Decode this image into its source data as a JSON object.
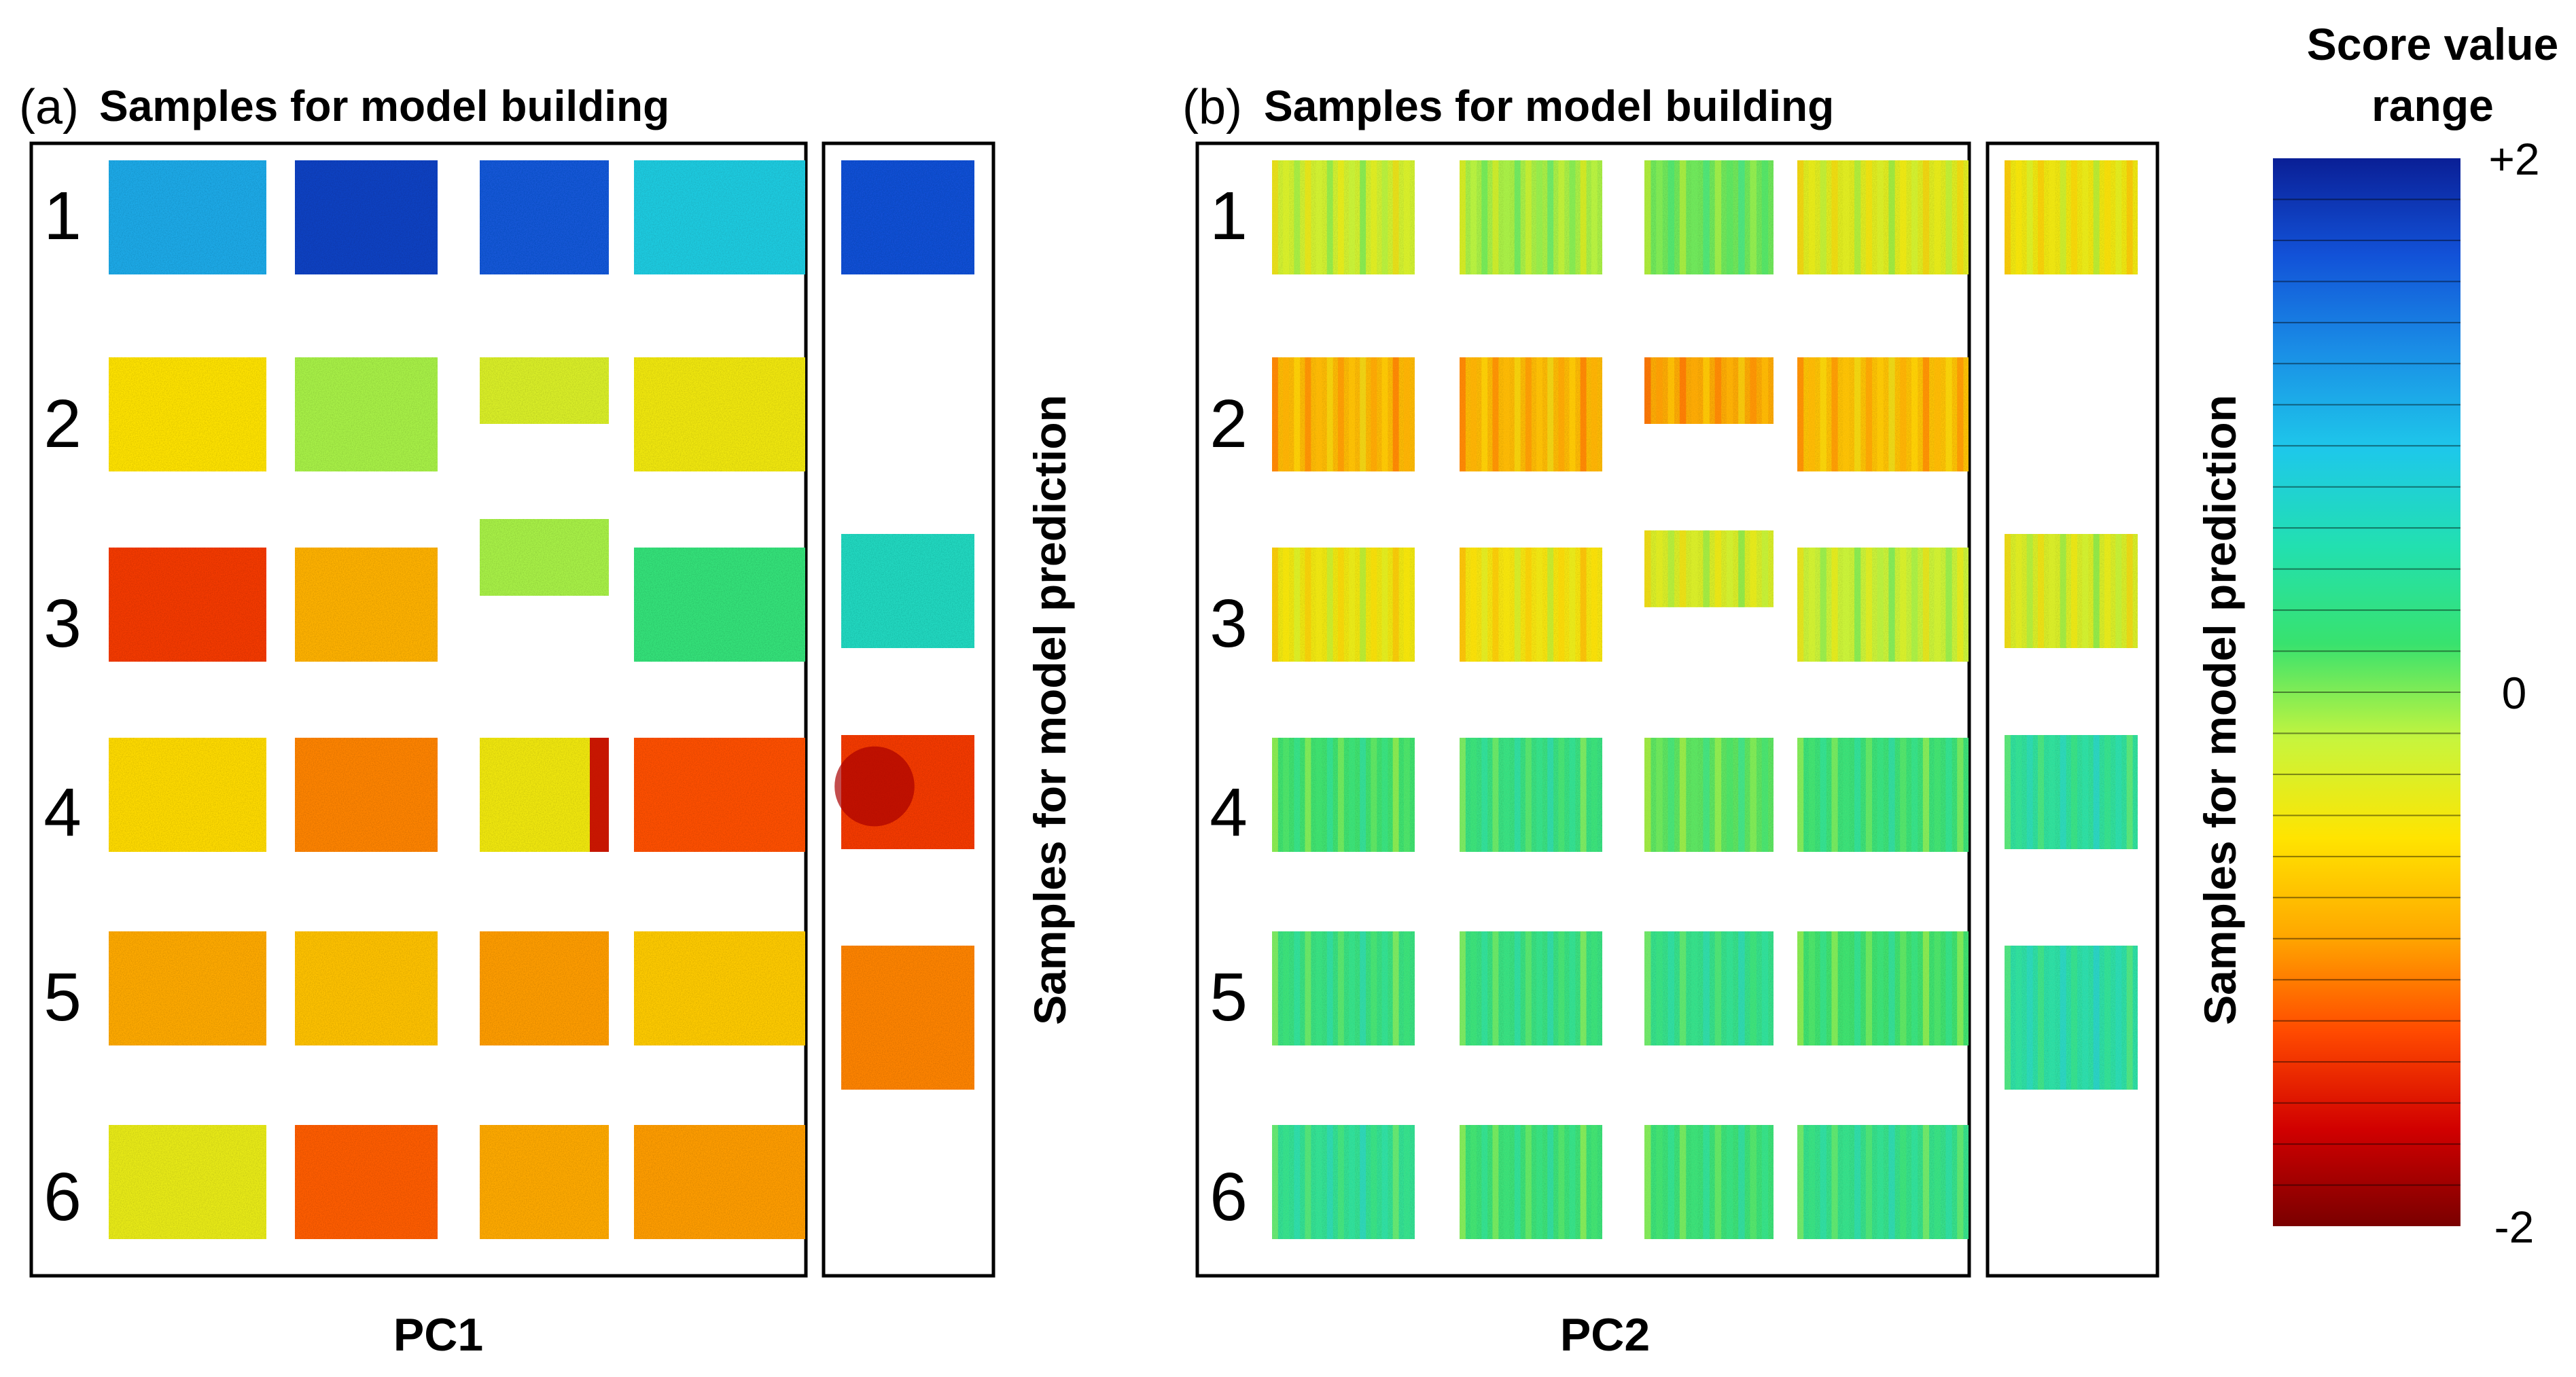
{
  "panel_a": {
    "tag": "(a)",
    "title": "Samples for model building",
    "side_label": "Samples for model prediction",
    "pc_label": "PC1",
    "row_labels": [
      "1",
      "2",
      "3",
      "4",
      "5",
      "6"
    ],
    "build_samples": [
      [
        {
          "score": 1.1,
          "shade": "plain"
        },
        {
          "score": 1.75,
          "shade": "plain"
        },
        {
          "score": 1.6,
          "shade": "plain"
        },
        {
          "score": 0.85,
          "shade": "plain"
        }
      ],
      [
        {
          "score": -0.55,
          "shade": "plain"
        },
        {
          "score": -0.1,
          "shade": "plain"
        },
        {
          "score": -0.3,
          "shade": "plain"
        },
        {
          "score": -0.45,
          "shade": "plain"
        }
      ],
      [
        {
          "score": -1.35,
          "shade": "plain"
        },
        {
          "score": -0.85,
          "shade": "plain"
        },
        {
          "score": -0.1,
          "shade": "plain"
        },
        {
          "score": 0.25,
          "shade": "plain"
        }
      ],
      [
        {
          "score": -0.6,
          "shade": "plain"
        },
        {
          "score": -1.05,
          "shade": "plain"
        },
        {
          "score": -0.45,
          "shade": "edge"
        },
        {
          "score": -1.25,
          "shade": "plain"
        }
      ],
      [
        {
          "score": -0.9,
          "shade": "plain"
        },
        {
          "score": -0.75,
          "shade": "plain"
        },
        {
          "score": -0.95,
          "shade": "plain"
        },
        {
          "score": -0.7,
          "shade": "plain"
        }
      ],
      [
        {
          "score": -0.4,
          "shade": "plain"
        },
        {
          "score": -1.2,
          "shade": "plain"
        },
        {
          "score": -0.9,
          "shade": "plain"
        },
        {
          "score": -0.95,
          "shade": "plain"
        }
      ]
    ],
    "predict_samples": [
      {
        "row": 1,
        "score": 1.65,
        "shade": "plain"
      },
      {
        "row": 3,
        "score": 0.65,
        "shade": "plain"
      },
      {
        "row": 4,
        "score": -1.35,
        "shade": "hot"
      },
      {
        "row": 5,
        "score": -1.05,
        "shade": "plain"
      }
    ]
  },
  "panel_b": {
    "tag": "(b)",
    "title": "Samples for model building",
    "side_label": "Samples for model prediction",
    "pc_label": "PC2",
    "row_labels": [
      "1",
      "2",
      "3",
      "4",
      "5",
      "6"
    ],
    "build_samples": [
      [
        {
          "score": -0.25,
          "shade": "stripes"
        },
        {
          "score": -0.1,
          "shade": "stripes"
        },
        {
          "score": 0.05,
          "shade": "stripes"
        },
        {
          "score": -0.35,
          "shade": "stripes"
        }
      ],
      [
        {
          "score": -0.8,
          "shade": "stripes"
        },
        {
          "score": -0.8,
          "shade": "stripes"
        },
        {
          "score": -0.9,
          "shade": "stripes"
        },
        {
          "score": -0.75,
          "shade": "stripes"
        }
      ],
      [
        {
          "score": -0.45,
          "shade": "stripes"
        },
        {
          "score": -0.5,
          "shade": "stripes"
        },
        {
          "score": -0.3,
          "shade": "stripes"
        },
        {
          "score": -0.2,
          "shade": "stripes"
        }
      ],
      [
        {
          "score": 0.2,
          "shade": "stripes"
        },
        {
          "score": 0.3,
          "shade": "stripes"
        },
        {
          "score": 0.1,
          "shade": "stripes"
        },
        {
          "score": 0.25,
          "shade": "stripes"
        }
      ],
      [
        {
          "score": 0.3,
          "shade": "stripes"
        },
        {
          "score": 0.3,
          "shade": "stripes"
        },
        {
          "score": 0.35,
          "shade": "stripes"
        },
        {
          "score": 0.2,
          "shade": "stripes"
        }
      ],
      [
        {
          "score": 0.4,
          "shade": "stripes"
        },
        {
          "score": 0.25,
          "shade": "stripes"
        },
        {
          "score": 0.25,
          "shade": "stripes"
        },
        {
          "score": 0.35,
          "shade": "stripes"
        }
      ]
    ],
    "predict_samples": [
      {
        "row": 1,
        "score": -0.45,
        "shade": "stripes"
      },
      {
        "row": 3,
        "score": -0.3,
        "shade": "stripes"
      },
      {
        "row": 4,
        "score": 0.45,
        "shade": "stripes"
      },
      {
        "row": 5,
        "score": 0.5,
        "shade": "stripes"
      }
    ]
  },
  "colorbar": {
    "title_line1": "Score value",
    "title_line2": "range",
    "ticks": [
      {
        "label": "+2",
        "value": 2
      },
      {
        "label": "0",
        "value": 0
      },
      {
        "label": "-2",
        "value": -2
      }
    ],
    "range": [
      -2,
      2
    ],
    "stops": [
      "#7a0000",
      "#d10000",
      "#ff4a00",
      "#ffa800",
      "#ffe400",
      "#c8f53c",
      "#38e26e",
      "#22e0b0",
      "#1ec8ea",
      "#1a8fe6",
      "#1252d8",
      "#0a1f96"
    ]
  }
}
